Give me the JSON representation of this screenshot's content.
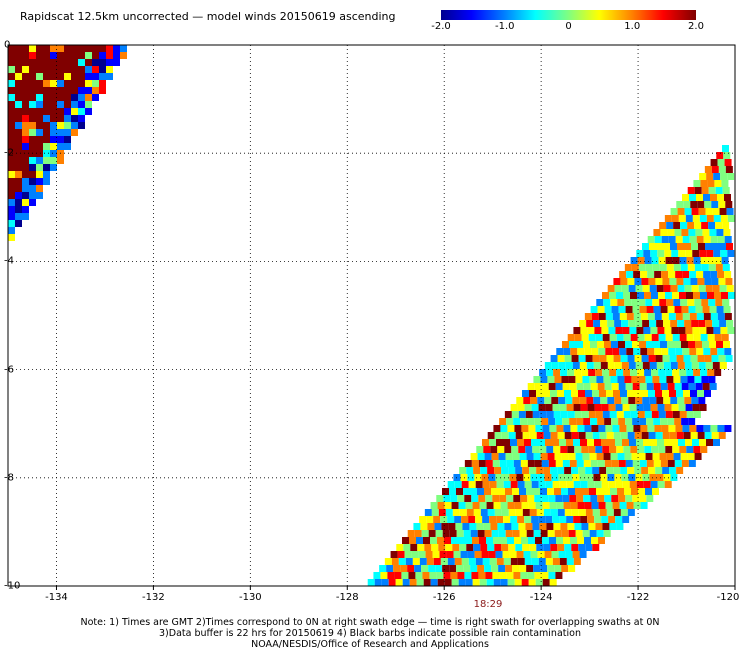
{
  "title": "Rapidscat 12.5km uncorrected — model winds 20150619 ascending",
  "colorbar": {
    "labels": [
      "-2.0",
      "-1.0",
      "0",
      "1.0",
      "2.0"
    ],
    "range": [
      -2.0,
      2.0
    ],
    "colors": [
      "#00008f",
      "#0000ff",
      "#0080ff",
      "#00ffff",
      "#80ff80",
      "#ffff00",
      "#ff8000",
      "#ff0000",
      "#800000"
    ]
  },
  "axes": {
    "x_ticks": [
      "-134",
      "-132",
      "-130",
      "-128",
      "-126",
      "-124",
      "-122",
      "-120"
    ],
    "y_ticks": [
      "0",
      "-2",
      "-4",
      "-6",
      "-8",
      "-10"
    ],
    "x_range": [
      -135,
      -120
    ],
    "y_range": [
      -10,
      0
    ],
    "grid": true
  },
  "time_label": "18:29",
  "notes": [
    "Note: 1) Times are GMT 2)Times correspond to 0N at right swath edge — time is right swath for overlapping swaths at 0N",
    "3)Data buffer is 22 hrs for 20150619 4) Black barbs indicate possible rain contamination",
    "NOAA/NESDIS/Office of Research and Applications"
  ],
  "chart_data": {
    "type": "heatmap",
    "title": "Rapidscat 12.5km uncorrected — model winds 20150619 ascending",
    "xlim": [
      -135,
      -120
    ],
    "ylim": [
      -10,
      0
    ],
    "grid": true,
    "value_range": [
      -2.0,
      2.0
    ],
    "swaths": [
      {
        "description": "northwest swath edge",
        "lon_range": [
          -135,
          -132.7
        ],
        "lat_range": [
          -3.5,
          0
        ],
        "dominant_values": "mostly > 2.0 (dark red), with some near -2.0 (blue) near the swath edge"
      },
      {
        "description": "southeast swath",
        "lon_range": [
          -127,
          -120
        ],
        "lat_range": [
          -10,
          -2
        ],
        "dominant_values": "mostly -1.0 to 1.0, scattered 1.0 to 2.0, isolated near -2.0"
      }
    ]
  }
}
